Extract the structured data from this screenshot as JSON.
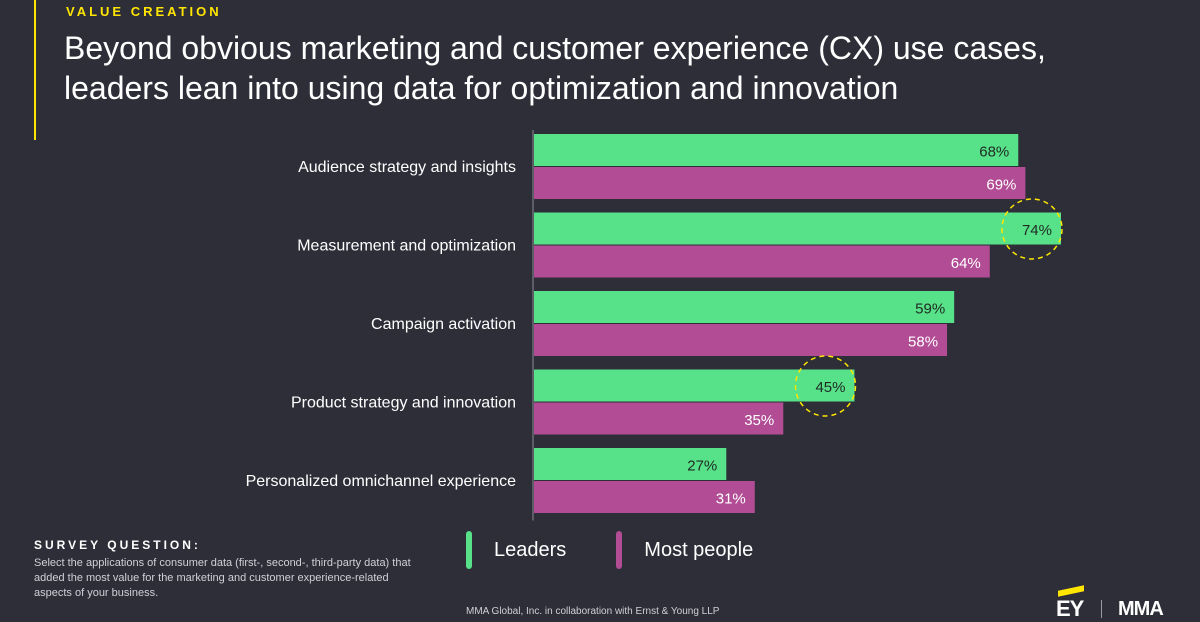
{
  "header": {
    "kicker": "VALUE CREATION",
    "title": "Beyond obvious marketing and customer experience (CX) use cases,\nleaders lean into using data for optimization and innovation"
  },
  "colors": {
    "background": "#2e2e38",
    "leaders": "#57e188",
    "most_people": "#b14c95",
    "highlight": "#ffe600"
  },
  "chart_data": {
    "type": "bar",
    "orientation": "horizontal",
    "categories": [
      "Audience strategy and insights",
      "Measurement and optimization",
      "Campaign activation",
      "Product strategy and innovation",
      "Personalized omnichannel experience"
    ],
    "series": [
      {
        "name": "Leaders",
        "values": [
          68,
          74,
          59,
          45,
          27
        ],
        "labels": [
          "68%",
          "74%",
          "59%",
          "45%",
          "27%"
        ]
      },
      {
        "name": "Most people",
        "values": [
          69,
          64,
          58,
          35,
          31
        ],
        "labels": [
          "69%",
          "64%",
          "58%",
          "35%",
          "31%"
        ]
      }
    ],
    "highlighted": [
      {
        "series": "Leaders",
        "category": "Measurement and optimization"
      },
      {
        "series": "Leaders",
        "category": "Product strategy and innovation"
      }
    ],
    "xlim": [
      0,
      100
    ],
    "legend": "bottom",
    "grid": false
  },
  "legend": {
    "leaders": "Leaders",
    "most_people": "Most people"
  },
  "survey": {
    "label": "SURVEY QUESTION:",
    "text": "Select the applications of consumer data (first-, second-, third-party data) that added the most value for the marketing and customer experience-related aspects of your business."
  },
  "footer": {
    "credit": "MMA Global, Inc. in collaboration with Ernst & Young LLP"
  },
  "logos": {
    "ey": "EY",
    "mma": "MMA"
  }
}
